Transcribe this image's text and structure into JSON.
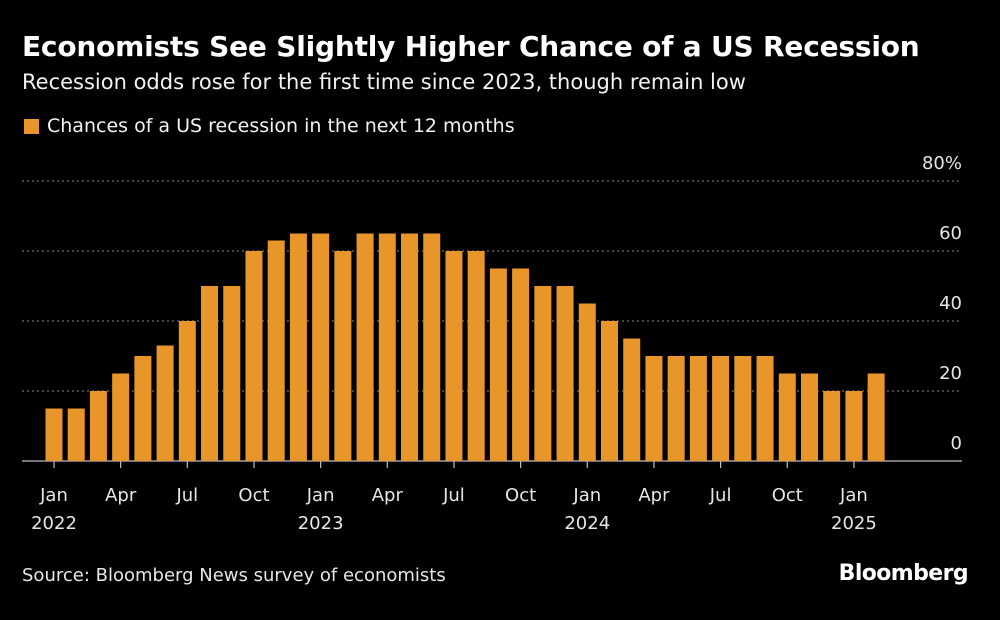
{
  "header": {
    "title": "Economists See Slightly Higher Chance of a US Recession",
    "subtitle": "Recession odds rose for the first time since 2023, though remain low"
  },
  "legend": {
    "label": "Chances of a US recession in the next 12 months"
  },
  "footer": {
    "source": "Source: Bloomberg News survey of economists",
    "brand": "Bloomberg"
  },
  "colors": {
    "background": "#000000",
    "bar": "#e8952a",
    "grid": "#8a8a8a",
    "text": "#ffffff"
  },
  "chart_data": {
    "type": "bar",
    "title": "Economists See Slightly Higher Chance of a US Recession",
    "subtitle": "Recession odds rose for the first time since 2023, though remain low",
    "xlabel": "",
    "ylabel": "",
    "ylim": [
      0,
      80
    ],
    "y_ticks": [
      0,
      20,
      40,
      60,
      80
    ],
    "y_tick_labels": [
      "0",
      "20",
      "40",
      "60",
      "80%"
    ],
    "grid": true,
    "legend_position": "top-left",
    "categories": [
      "2022-01",
      "2022-02",
      "2022-03",
      "2022-04",
      "2022-05",
      "2022-06",
      "2022-07",
      "2022-08",
      "2022-09",
      "2022-10",
      "2022-11",
      "2022-12",
      "2023-01",
      "2023-02",
      "2023-03",
      "2023-04",
      "2023-05",
      "2023-06",
      "2023-07",
      "2023-08",
      "2023-09",
      "2023-10",
      "2023-11",
      "2023-12",
      "2024-01",
      "2024-02",
      "2024-03",
      "2024-04",
      "2024-05",
      "2024-06",
      "2024-07",
      "2024-08",
      "2024-09",
      "2024-10",
      "2024-11",
      "2024-12",
      "2025-01",
      "2025-02"
    ],
    "series": [
      {
        "name": "Chances of a US recession in the next 12 months",
        "values": [
          15,
          15,
          20,
          25,
          30,
          33,
          40,
          50,
          50,
          60,
          63,
          65,
          65,
          60,
          65,
          65,
          65,
          65,
          60,
          60,
          55,
          55,
          50,
          50,
          45,
          40,
          35,
          30,
          30,
          30,
          30,
          30,
          30,
          25,
          25,
          20,
          20,
          25
        ]
      }
    ],
    "x_ticks": [
      {
        "index": 0,
        "month": "Jan",
        "year": "2022"
      },
      {
        "index": 3,
        "month": "Apr",
        "year": ""
      },
      {
        "index": 6,
        "month": "Jul",
        "year": ""
      },
      {
        "index": 9,
        "month": "Oct",
        "year": ""
      },
      {
        "index": 12,
        "month": "Jan",
        "year": "2023"
      },
      {
        "index": 15,
        "month": "Apr",
        "year": ""
      },
      {
        "index": 18,
        "month": "Jul",
        "year": ""
      },
      {
        "index": 21,
        "month": "Oct",
        "year": ""
      },
      {
        "index": 24,
        "month": "Jan",
        "year": "2024"
      },
      {
        "index": 27,
        "month": "Apr",
        "year": ""
      },
      {
        "index": 30,
        "month": "Jul",
        "year": ""
      },
      {
        "index": 33,
        "month": "Oct",
        "year": ""
      },
      {
        "index": 36,
        "month": "Jan",
        "year": "2025"
      }
    ]
  }
}
